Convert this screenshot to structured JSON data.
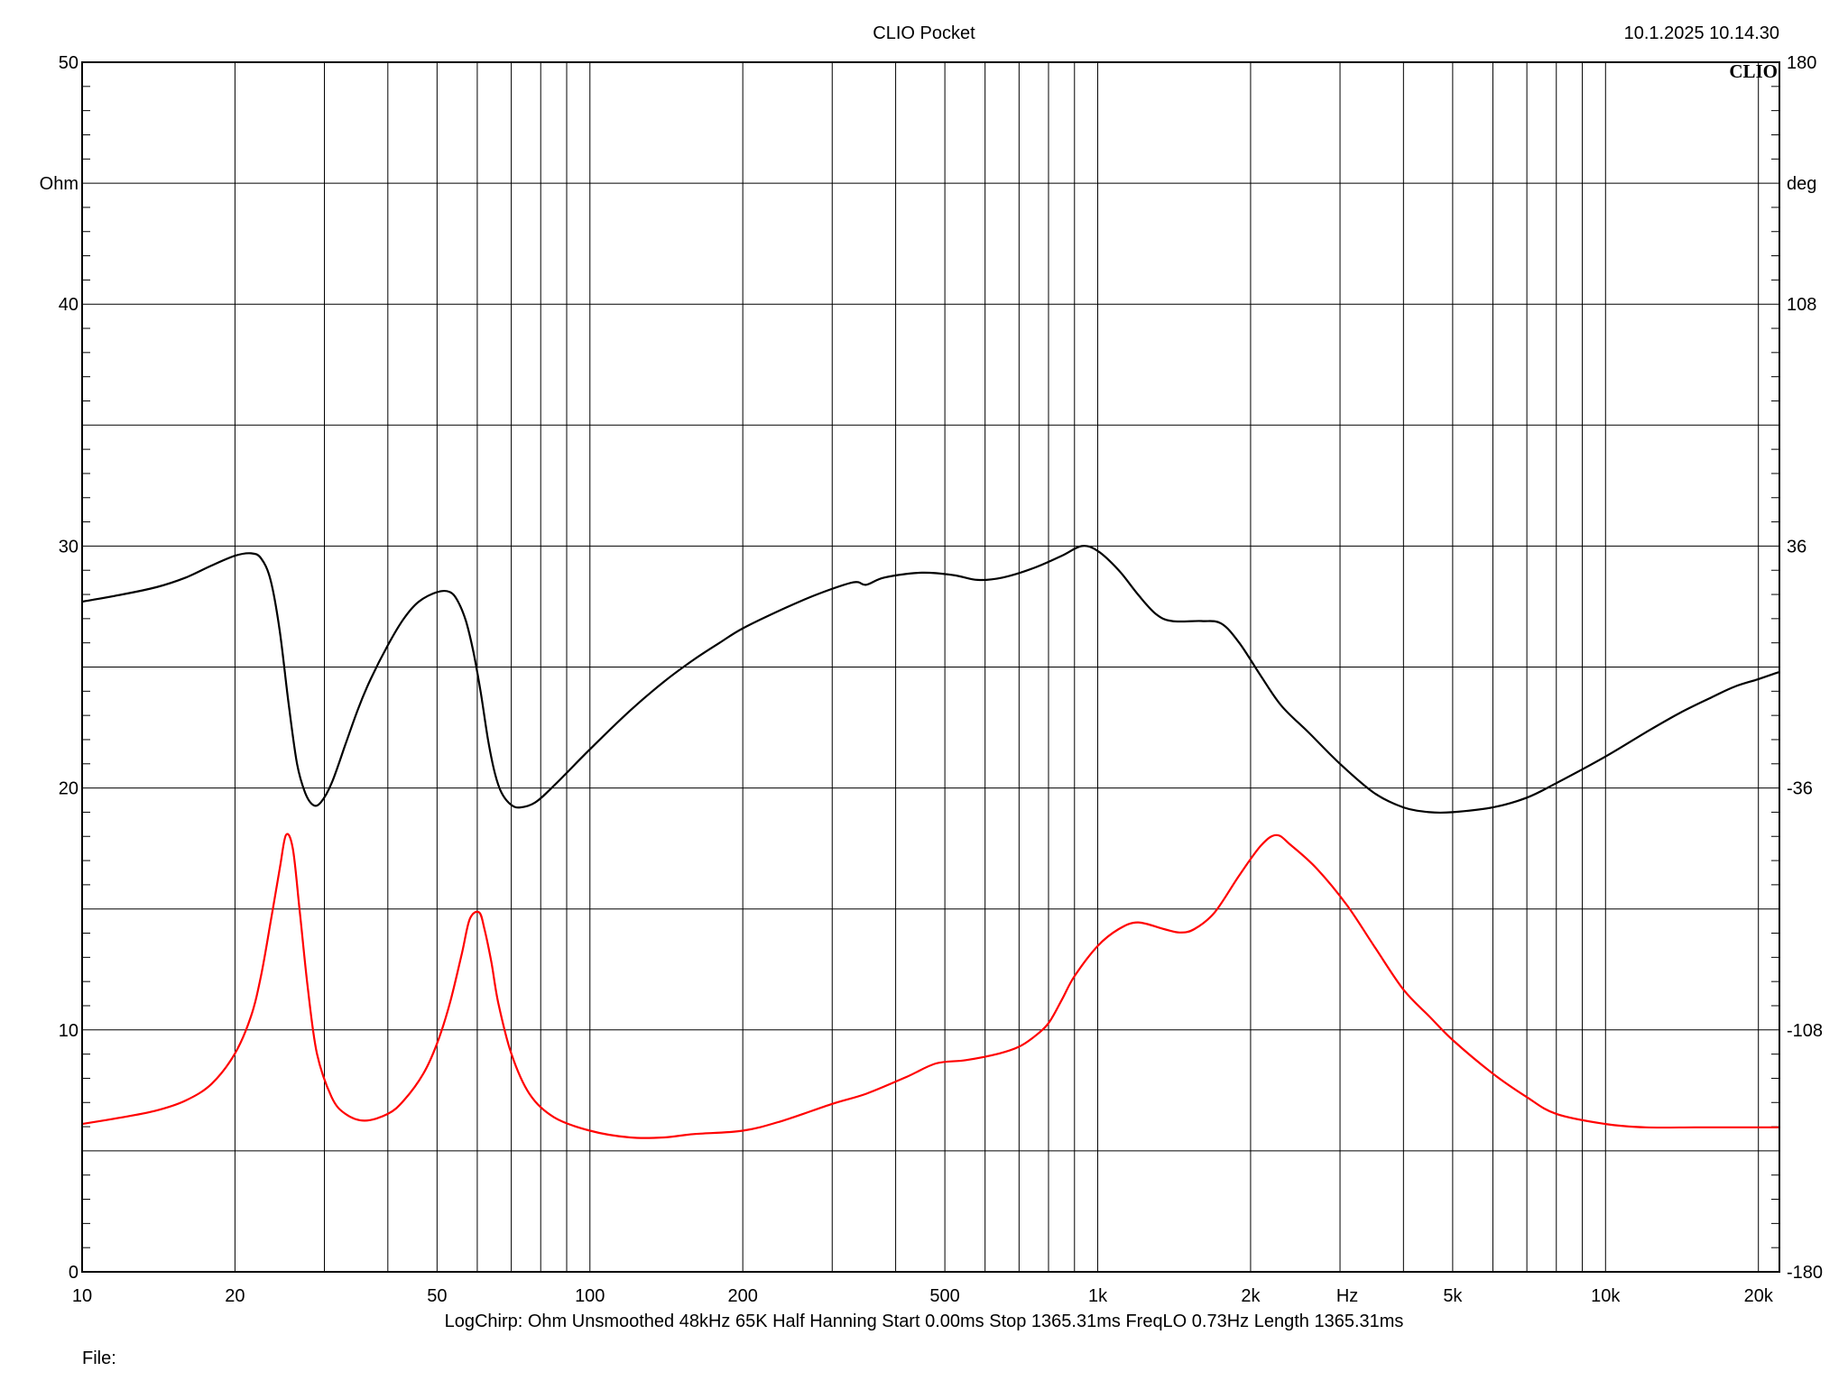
{
  "header": {
    "title": "CLIO Pocket",
    "timestamp": "10.1.2025 10.14.30",
    "logo": "CLIO"
  },
  "footer": {
    "settings": [
      "LogChirp:",
      "Ohm",
      "Unsmoothed",
      "48kHz",
      "65K",
      "Half Hanning",
      "Start 0.00ms",
      "Stop 1365.31ms",
      "FreqLO 0.73Hz",
      "Length 1365.31ms"
    ],
    "file_label": "File:"
  },
  "colors": {
    "magnitude": "#000000",
    "phase": "#ff0000",
    "grid": "#000000"
  },
  "chart_data": {
    "type": "line",
    "x_scale": "log",
    "xlim": [
      10,
      22000
    ],
    "x_ticks": [
      {
        "v": 10,
        "label": "10"
      },
      {
        "v": 20,
        "label": "20"
      },
      {
        "v": 50,
        "label": "50"
      },
      {
        "v": 100,
        "label": "100"
      },
      {
        "v": 200,
        "label": "200"
      },
      {
        "v": 500,
        "label": "500"
      },
      {
        "v": 1000,
        "label": "1k"
      },
      {
        "v": 2000,
        "label": "2k"
      },
      {
        "v": 5000,
        "label": "5k"
      },
      {
        "v": 10000,
        "label": "10k"
      },
      {
        "v": 20000,
        "label": "20k"
      }
    ],
    "x_unit": "Hz",
    "x_unit_pos": 3100,
    "y_left": {
      "unit": "Ohm",
      "lim": [
        0,
        50
      ],
      "tick_values": [
        0,
        10,
        20,
        30,
        40,
        50
      ],
      "tick_labels": [
        "0",
        "10",
        "20",
        "30",
        "40",
        "50"
      ],
      "unit_pos": 45
    },
    "y_right": {
      "unit": "deg",
      "lim": [
        -180,
        180
      ],
      "tick_values": [
        -180,
        -108,
        -36,
        36,
        108,
        180
      ],
      "tick_labels": [
        "-180",
        "-108",
        "-36",
        "36",
        "108",
        "180"
      ],
      "unit_pos": 144
    },
    "grid": true,
    "series": [
      {
        "axis": "left",
        "color": "#000000",
        "points": [
          [
            10,
            27.7
          ],
          [
            12,
            28.0
          ],
          [
            14,
            28.3
          ],
          [
            16,
            28.7
          ],
          [
            18,
            29.2
          ],
          [
            20,
            29.6
          ],
          [
            21.5,
            29.7
          ],
          [
            22.5,
            29.5
          ],
          [
            23.5,
            28.6
          ],
          [
            24.5,
            26.5
          ],
          [
            25.5,
            23.5
          ],
          [
            26.5,
            21.0
          ],
          [
            27.5,
            19.8
          ],
          [
            28.5,
            19.3
          ],
          [
            29.5,
            19.4
          ],
          [
            31,
            20.2
          ],
          [
            33,
            21.8
          ],
          [
            35,
            23.3
          ],
          [
            37,
            24.5
          ],
          [
            40,
            25.9
          ],
          [
            43,
            27.0
          ],
          [
            46,
            27.7
          ],
          [
            50,
            28.1
          ],
          [
            53,
            28.1
          ],
          [
            55,
            27.7
          ],
          [
            57,
            26.9
          ],
          [
            59,
            25.6
          ],
          [
            61,
            23.9
          ],
          [
            63,
            22.0
          ],
          [
            65,
            20.6
          ],
          [
            67,
            19.8
          ],
          [
            70,
            19.3
          ],
          [
            73,
            19.2
          ],
          [
            78,
            19.4
          ],
          [
            85,
            20.1
          ],
          [
            100,
            21.6
          ],
          [
            120,
            23.2
          ],
          [
            140,
            24.4
          ],
          [
            160,
            25.3
          ],
          [
            180,
            26.0
          ],
          [
            200,
            26.6
          ],
          [
            240,
            27.4
          ],
          [
            280,
            28.0
          ],
          [
            330,
            28.5
          ],
          [
            350,
            28.4
          ],
          [
            380,
            28.7
          ],
          [
            450,
            28.9
          ],
          [
            520,
            28.8
          ],
          [
            580,
            28.6
          ],
          [
            650,
            28.7
          ],
          [
            750,
            29.1
          ],
          [
            850,
            29.6
          ],
          [
            930,
            30.0
          ],
          [
            1000,
            29.8
          ],
          [
            1100,
            29.0
          ],
          [
            1200,
            28.0
          ],
          [
            1300,
            27.2
          ],
          [
            1400,
            26.9
          ],
          [
            1600,
            26.9
          ],
          [
            1750,
            26.8
          ],
          [
            1900,
            26.0
          ],
          [
            2100,
            24.6
          ],
          [
            2300,
            23.4
          ],
          [
            2600,
            22.3
          ],
          [
            3000,
            21.0
          ],
          [
            3500,
            19.8
          ],
          [
            4000,
            19.2
          ],
          [
            4500,
            19.0
          ],
          [
            5000,
            19.0
          ],
          [
            6000,
            19.2
          ],
          [
            7000,
            19.6
          ],
          [
            8000,
            20.2
          ],
          [
            10000,
            21.3
          ],
          [
            12000,
            22.3
          ],
          [
            14000,
            23.1
          ],
          [
            16000,
            23.7
          ],
          [
            18000,
            24.2
          ],
          [
            20000,
            24.5
          ],
          [
            22000,
            24.8
          ]
        ]
      },
      {
        "axis": "right",
        "color": "#ff0000",
        "points": [
          [
            10,
            -136
          ],
          [
            12,
            -134
          ],
          [
            14,
            -132
          ],
          [
            16,
            -129
          ],
          [
            18,
            -124
          ],
          [
            20,
            -115
          ],
          [
            21.5,
            -104
          ],
          [
            22.5,
            -92
          ],
          [
            23.5,
            -76
          ],
          [
            24.5,
            -60
          ],
          [
            25.2,
            -50
          ],
          [
            26,
            -54
          ],
          [
            26.8,
            -72
          ],
          [
            27.8,
            -95
          ],
          [
            29,
            -115
          ],
          [
            31,
            -128
          ],
          [
            33,
            -133
          ],
          [
            36,
            -135
          ],
          [
            40,
            -133
          ],
          [
            43,
            -129
          ],
          [
            47,
            -121
          ],
          [
            50,
            -112
          ],
          [
            53,
            -100
          ],
          [
            56,
            -85
          ],
          [
            58,
            -75
          ],
          [
            60.5,
            -73
          ],
          [
            62,
            -78
          ],
          [
            64,
            -88
          ],
          [
            66,
            -100
          ],
          [
            70,
            -115
          ],
          [
            76,
            -127
          ],
          [
            85,
            -134
          ],
          [
            100,
            -138
          ],
          [
            120,
            -140
          ],
          [
            140,
            -140
          ],
          [
            160,
            -139
          ],
          [
            200,
            -138
          ],
          [
            240,
            -135
          ],
          [
            300,
            -130
          ],
          [
            350,
            -127
          ],
          [
            420,
            -122
          ],
          [
            480,
            -118
          ],
          [
            550,
            -117
          ],
          [
            640,
            -115
          ],
          [
            700,
            -113
          ],
          [
            750,
            -110
          ],
          [
            800,
            -106
          ],
          [
            850,
            -99
          ],
          [
            900,
            -92
          ],
          [
            1000,
            -83
          ],
          [
            1100,
            -78
          ],
          [
            1200,
            -76
          ],
          [
            1350,
            -78
          ],
          [
            1450,
            -79
          ],
          [
            1550,
            -78
          ],
          [
            1700,
            -73
          ],
          [
            1900,
            -62
          ],
          [
            2100,
            -53
          ],
          [
            2250,
            -50
          ],
          [
            2400,
            -53
          ],
          [
            2700,
            -60
          ],
          [
            3100,
            -71
          ],
          [
            3500,
            -83
          ],
          [
            4000,
            -96
          ],
          [
            4500,
            -104
          ],
          [
            5000,
            -111
          ],
          [
            6000,
            -121
          ],
          [
            7000,
            -128
          ],
          [
            8000,
            -133
          ],
          [
            10000,
            -136
          ],
          [
            12000,
            -137
          ],
          [
            15000,
            -137
          ],
          [
            18000,
            -137
          ],
          [
            20000,
            -137
          ],
          [
            22000,
            -137
          ]
        ]
      }
    ]
  }
}
